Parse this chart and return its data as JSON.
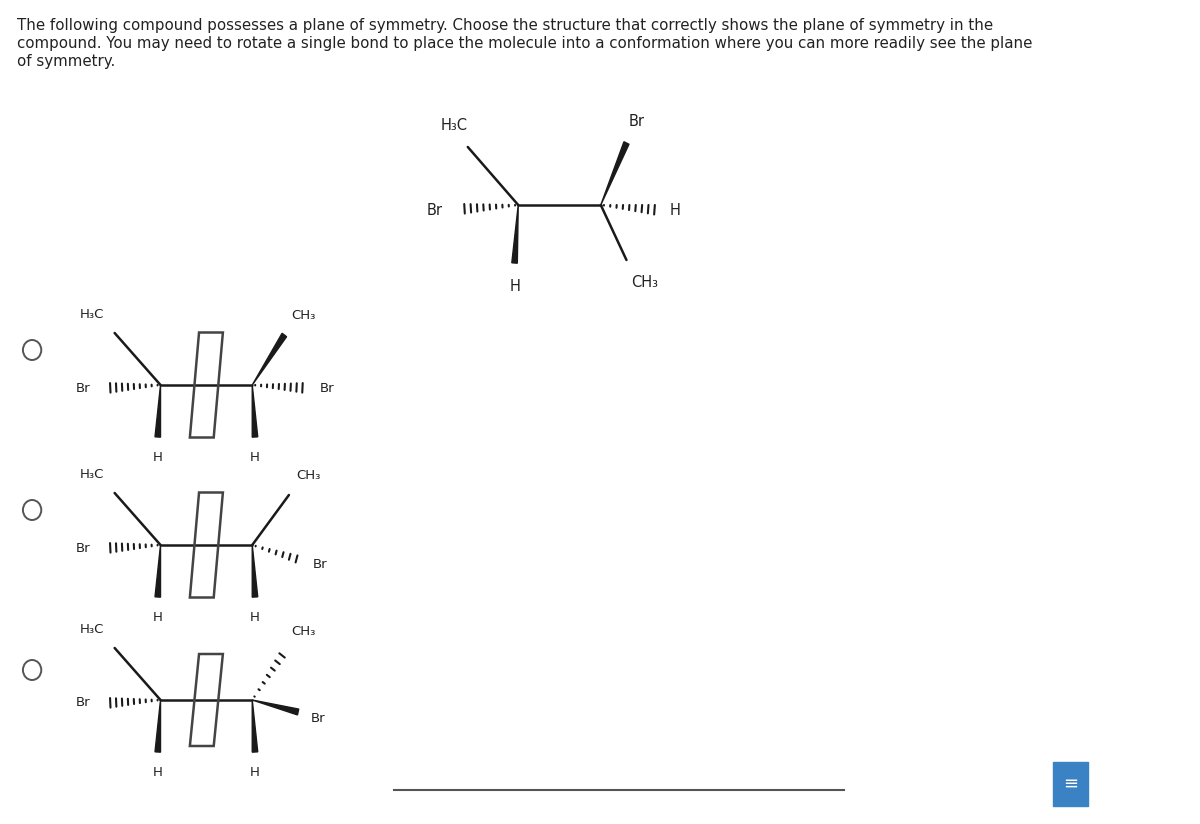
{
  "title_line1": "The following compound possesses a plane of symmetry. Choose the structure that correctly shows the plane of symmetry in the",
  "title_line2": "compound. You may need to rotate a single bond to place the molecule into a conformation where you can more readily see the plane",
  "title_line3": "of symmetry.",
  "bg_color": "#ffffff",
  "text_color": "#222222",
  "mol_color": "#1a1a1a",
  "font_size_title": 10.8,
  "font_size_atom": 9.5,
  "font_size_atom_top": 10.5
}
